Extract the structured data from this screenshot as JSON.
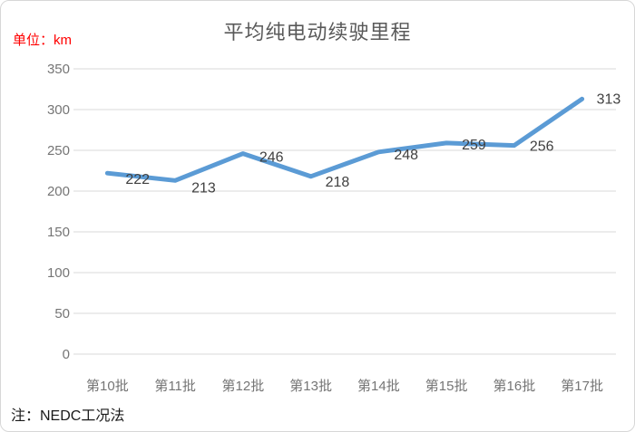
{
  "header": {
    "unit_label": "单位：km",
    "title": "平均纯电动续驶里程"
  },
  "note": "注：NEDC工况法",
  "colors": {
    "line": "#5B9BD5",
    "gridline": "#D9D9D9",
    "axis_label": "#757575",
    "data_label": "#404040",
    "title": "#595959",
    "unit_label": "#FF0000",
    "frame_border": "#D7D7D7",
    "background": "#FFFFFF"
  },
  "chart_data": {
    "type": "line",
    "title": "平均纯电动续驶里程",
    "categories": [
      "第10批",
      "第11批",
      "第12批",
      "第13批",
      "第14批",
      "第15批",
      "第16批",
      "第17批"
    ],
    "values": [
      222,
      213,
      246,
      218,
      248,
      259,
      256,
      313
    ],
    "data_labels": [
      222,
      213,
      246,
      218,
      248,
      259,
      256,
      313
    ],
    "xlabel": "",
    "ylabel": "单位：km",
    "ylim": [
      0,
      350
    ],
    "yticks": [
      0,
      50,
      100,
      150,
      200,
      250,
      300,
      350
    ],
    "grid": "horizontal",
    "legend": "none",
    "note": "注：NEDC工况法"
  }
}
